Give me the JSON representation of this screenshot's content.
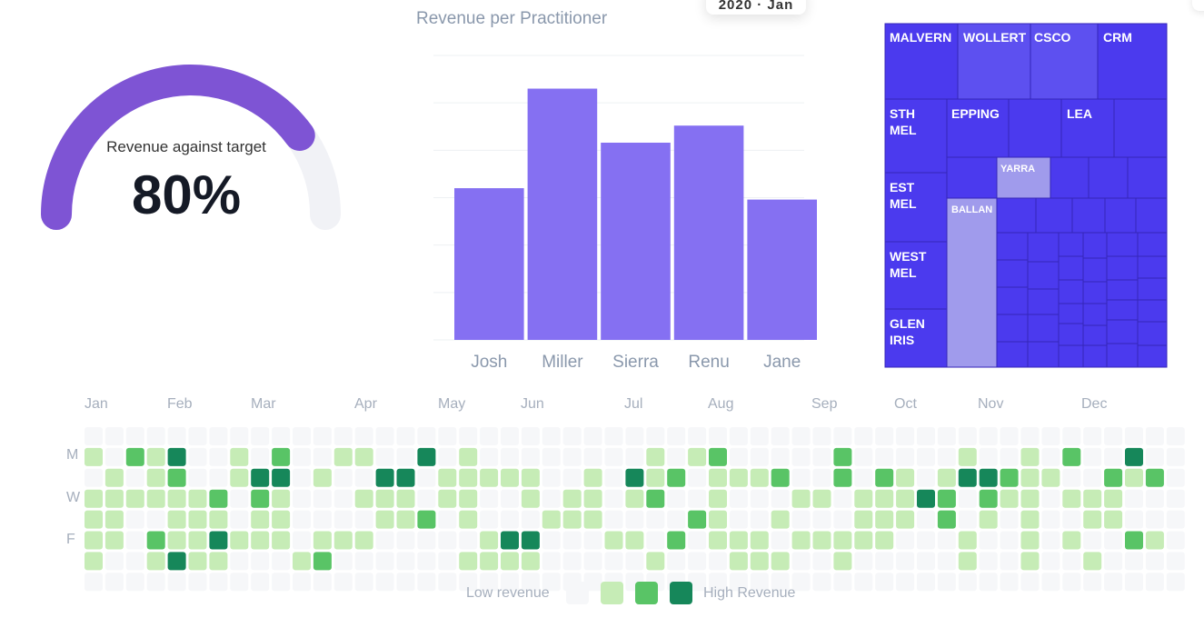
{
  "tooltip": {
    "text": "2020 · Jan"
  },
  "gauge": {
    "label": "Revenue against target",
    "value_text": "80%",
    "fraction": 0.8,
    "colors": {
      "track": "#f1f2f6",
      "fill": "#7e54d4"
    }
  },
  "chart_data": [
    {
      "type": "bar",
      "title": "Revenue per Practitioner",
      "categories": [
        "Josh",
        "Miller",
        "Sierra",
        "Renu",
        "Jane"
      ],
      "values": [
        160,
        265,
        208,
        226,
        148
      ],
      "ylim": [
        0,
        300
      ],
      "grid": true,
      "color": "#8570f2"
    },
    {
      "type": "treemap",
      "labels": [
        "MALVERN",
        "WOLLERT",
        "CSCO",
        "CRM",
        "STH\nMEL",
        "EPPING",
        "LEA",
        "EST\nMEL",
        "YARRA",
        "BALLAN",
        "WEST\nMEL",
        "GLEN\nIRIS"
      ],
      "colors": {
        "primary": "#4b3aee",
        "secondary": "#5d50f0",
        "light": "#a09bec"
      }
    },
    {
      "type": "heatmap",
      "months": [
        "Jan",
        "Feb",
        "Mar",
        "Apr",
        "May",
        "Jun",
        "Jul",
        "Aug",
        "Sep",
        "Oct",
        "Nov",
        "Dec"
      ],
      "day_labels": [
        "M",
        "W",
        "F"
      ],
      "weeks": 53,
      "levels": [
        0,
        1,
        2,
        3
      ],
      "grid": [
        "0000000000000000000000000000000000000000000000000000",
        "1021300102001100301000000001012000002000001001020030",
        "0101200133010033011111001031201112002021013321100212",
        "1111112021000111011001011012001000110111320211011100",
        "1100111011000011201000111000021001000111020101001100",
        "1102113111011100000133000110201110111110001001010021",
        "1001311000120000001111000001000111001000001001001000",
        "0000000000000000000000000000000000000000000000000000"
      ],
      "legend": {
        "low": "Low revenue",
        "high": "High Revenue"
      },
      "colors": [
        "#f6f7f9",
        "#c6ecb6",
        "#59c466",
        "#16875a"
      ]
    }
  ]
}
